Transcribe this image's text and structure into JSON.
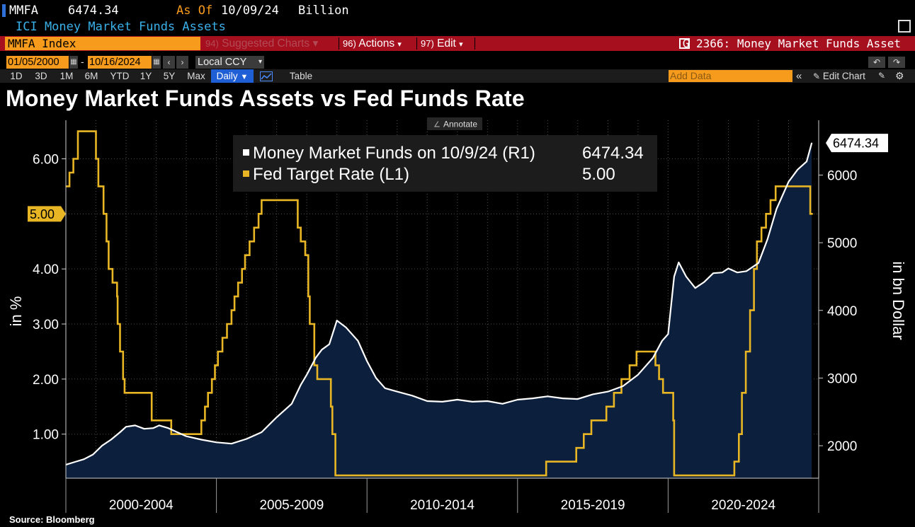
{
  "header": {
    "ticker": "MMFA",
    "last_value": "6474.34",
    "as_of_label": "As Of",
    "as_of_date": "10/09/24",
    "unit": "Billion",
    "description": "ICI Money Market Funds Assets"
  },
  "command_bar": {
    "security": "MMFA Index",
    "suggested_num": "94)",
    "suggested_label": "Suggested Charts",
    "actions_num": "96)",
    "actions_label": "Actions",
    "edit_num": "97)",
    "edit_label": "Edit",
    "graph_title": "G 2366: Money Market Funds Asset"
  },
  "range_bar": {
    "start_date": "01/05/2000",
    "dash": "-",
    "end_date": "10/16/2024",
    "currency": "Local CCY"
  },
  "period_tabs": [
    "1D",
    "3D",
    "1M",
    "6M",
    "YTD",
    "1Y",
    "5Y",
    "Max"
  ],
  "frequency": "Daily",
  "table_label": "Table",
  "add_data_placeholder": "Add Data",
  "edit_chart_label": "Edit Chart",
  "annotate_label": "Annotate",
  "source_label": "Source: Bloomberg",
  "colors": {
    "mmf_line": "#ffffff",
    "mmf_fill": "#0c1f3d",
    "fed_line": "#e8b624",
    "accent_orange": "#f79b1c",
    "command_red": "#a50f1e",
    "active_tab": "#1e5fd6"
  },
  "chart_data": {
    "type": "line",
    "title": "Money Market Funds Assets vs Fed Funds Rate",
    "x_axis": {
      "range": [
        2000.0,
        2025.0
      ],
      "period_labels": [
        "2000-2004",
        "2005-2009",
        "2010-2014",
        "2015-2019",
        "2020-2024"
      ]
    },
    "y_left": {
      "label": "in %",
      "range": [
        0.2,
        6.7
      ],
      "ticks": [
        1.0,
        2.0,
        3.0,
        4.0,
        5.0,
        6.0
      ],
      "tick_labels": [
        "1.00",
        "2.00",
        "3.00",
        "4.00",
        "5.00",
        "6.00"
      ]
    },
    "y_right": {
      "label": "in bn Dollar",
      "range": [
        1520,
        6810
      ],
      "ticks": [
        2000,
        3000,
        4000,
        5000,
        6000
      ],
      "tick_labels": [
        "2000",
        "3000",
        "4000",
        "5000",
        "6000"
      ]
    },
    "legend": {
      "placement": "top-center",
      "entries": [
        {
          "label": "Money Market Funds on 10/9/24 (R1)",
          "value": "6474.34"
        },
        {
          "label": "Fed Target Rate (L1)",
          "value": "5.00"
        }
      ]
    },
    "last_value_labels": {
      "right": "6474.34",
      "left": "5.00"
    },
    "grid": true,
    "series": [
      {
        "name": "Money Market Funds",
        "axis": "right",
        "style": "area",
        "points": [
          [
            2000.0,
            1720
          ],
          [
            2000.3,
            1760
          ],
          [
            2000.6,
            1800
          ],
          [
            2000.9,
            1870
          ],
          [
            2001.2,
            2000
          ],
          [
            2001.5,
            2090
          ],
          [
            2001.8,
            2200
          ],
          [
            2002.0,
            2280
          ],
          [
            2002.3,
            2300
          ],
          [
            2002.6,
            2250
          ],
          [
            2002.9,
            2260
          ],
          [
            2003.1,
            2300
          ],
          [
            2003.4,
            2260
          ],
          [
            2003.7,
            2200
          ],
          [
            2004.0,
            2140
          ],
          [
            2004.5,
            2090
          ],
          [
            2005.0,
            2050
          ],
          [
            2005.5,
            2030
          ],
          [
            2006.0,
            2100
          ],
          [
            2006.5,
            2200
          ],
          [
            2007.0,
            2420
          ],
          [
            2007.5,
            2620
          ],
          [
            2007.8,
            2900
          ],
          [
            2008.0,
            3050
          ],
          [
            2008.3,
            3300
          ],
          [
            2008.5,
            3420
          ],
          [
            2008.75,
            3500
          ],
          [
            2009.0,
            3850
          ],
          [
            2009.3,
            3750
          ],
          [
            2009.7,
            3550
          ],
          [
            2010.0,
            3250
          ],
          [
            2010.3,
            3000
          ],
          [
            2010.6,
            2850
          ],
          [
            2011.0,
            2800
          ],
          [
            2011.5,
            2740
          ],
          [
            2012.0,
            2660
          ],
          [
            2012.5,
            2650
          ],
          [
            2013.0,
            2680
          ],
          [
            2013.5,
            2650
          ],
          [
            2014.0,
            2660
          ],
          [
            2014.5,
            2620
          ],
          [
            2015.0,
            2680
          ],
          [
            2015.5,
            2700
          ],
          [
            2016.0,
            2730
          ],
          [
            2016.5,
            2700
          ],
          [
            2017.0,
            2690
          ],
          [
            2017.5,
            2760
          ],
          [
            2018.0,
            2800
          ],
          [
            2018.5,
            2880
          ],
          [
            2019.0,
            3050
          ],
          [
            2019.5,
            3300
          ],
          [
            2019.8,
            3550
          ],
          [
            2020.0,
            3650
          ],
          [
            2020.2,
            4500
          ],
          [
            2020.35,
            4710
          ],
          [
            2020.6,
            4500
          ],
          [
            2020.9,
            4330
          ],
          [
            2021.2,
            4420
          ],
          [
            2021.5,
            4550
          ],
          [
            2021.8,
            4560
          ],
          [
            2022.0,
            4620
          ],
          [
            2022.3,
            4560
          ],
          [
            2022.6,
            4580
          ],
          [
            2023.0,
            4700
          ],
          [
            2023.3,
            5050
          ],
          [
            2023.6,
            5500
          ],
          [
            2024.0,
            5900
          ],
          [
            2024.3,
            6080
          ],
          [
            2024.6,
            6200
          ],
          [
            2024.77,
            6474.34
          ]
        ]
      },
      {
        "name": "Fed Target Rate",
        "axis": "left",
        "style": "step",
        "points": [
          [
            2000.0,
            5.5
          ],
          [
            2000.12,
            5.75
          ],
          [
            2000.25,
            6.0
          ],
          [
            2000.4,
            6.5
          ],
          [
            2001.0,
            6.0
          ],
          [
            2001.08,
            5.5
          ],
          [
            2001.25,
            5.0
          ],
          [
            2001.35,
            4.5
          ],
          [
            2001.42,
            4.0
          ],
          [
            2001.55,
            3.75
          ],
          [
            2001.7,
            3.5
          ],
          [
            2001.72,
            3.0
          ],
          [
            2001.8,
            2.5
          ],
          [
            2001.9,
            2.0
          ],
          [
            2001.95,
            1.75
          ],
          [
            2002.85,
            1.25
          ],
          [
            2003.5,
            1.0
          ],
          [
            2004.5,
            1.25
          ],
          [
            2004.62,
            1.5
          ],
          [
            2004.72,
            1.75
          ],
          [
            2004.85,
            2.0
          ],
          [
            2004.95,
            2.25
          ],
          [
            2005.05,
            2.5
          ],
          [
            2005.2,
            2.75
          ],
          [
            2005.35,
            3.0
          ],
          [
            2005.5,
            3.25
          ],
          [
            2005.6,
            3.5
          ],
          [
            2005.72,
            3.75
          ],
          [
            2005.85,
            4.0
          ],
          [
            2005.95,
            4.25
          ],
          [
            2006.1,
            4.5
          ],
          [
            2006.25,
            4.75
          ],
          [
            2006.4,
            5.0
          ],
          [
            2006.5,
            5.25
          ],
          [
            2007.7,
            4.75
          ],
          [
            2007.8,
            4.5
          ],
          [
            2007.95,
            4.25
          ],
          [
            2008.05,
            3.5
          ],
          [
            2008.1,
            3.0
          ],
          [
            2008.25,
            2.25
          ],
          [
            2008.35,
            2.0
          ],
          [
            2008.8,
            1.5
          ],
          [
            2008.85,
            1.0
          ],
          [
            2008.95,
            0.25
          ],
          [
            2015.95,
            0.5
          ],
          [
            2016.95,
            0.75
          ],
          [
            2017.2,
            1.0
          ],
          [
            2017.45,
            1.25
          ],
          [
            2017.95,
            1.5
          ],
          [
            2018.2,
            1.75
          ],
          [
            2018.45,
            2.0
          ],
          [
            2018.72,
            2.25
          ],
          [
            2018.95,
            2.5
          ],
          [
            2019.58,
            2.25
          ],
          [
            2019.7,
            2.0
          ],
          [
            2019.83,
            1.75
          ],
          [
            2020.17,
            1.25
          ],
          [
            2020.2,
            0.25
          ],
          [
            2022.2,
            0.5
          ],
          [
            2022.35,
            1.0
          ],
          [
            2022.45,
            1.75
          ],
          [
            2022.58,
            2.5
          ],
          [
            2022.72,
            3.25
          ],
          [
            2022.85,
            4.0
          ],
          [
            2022.95,
            4.5
          ],
          [
            2023.1,
            4.75
          ],
          [
            2023.25,
            5.0
          ],
          [
            2023.4,
            5.25
          ],
          [
            2023.57,
            5.5
          ],
          [
            2024.72,
            5.0
          ],
          [
            2024.8,
            5.0
          ]
        ]
      }
    ]
  }
}
